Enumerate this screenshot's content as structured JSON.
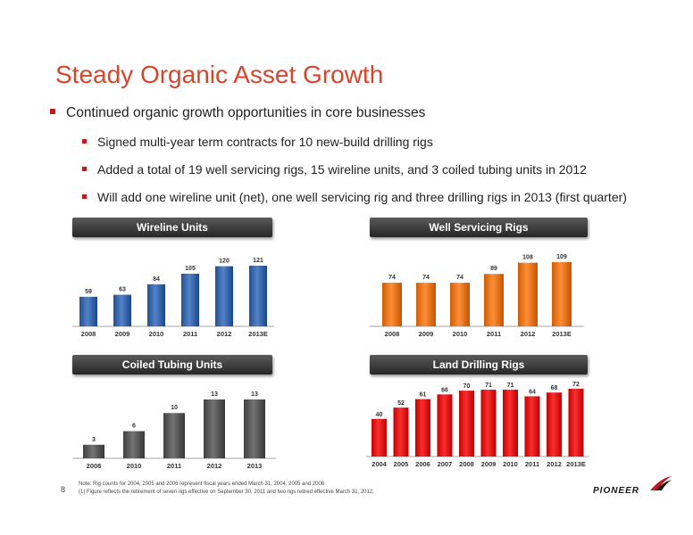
{
  "slide": {
    "title": "Steady Organic Asset Growth",
    "bullets": [
      "Continued organic growth opportunities in core businesses",
      "Signed multi-year term contracts for 10 new-build drilling rigs",
      "Added a total of 19 well servicing rigs, 15 wireline units, and 3 coiled tubing units in 2012",
      "Will add one wireline unit (net), one well servicing rig and three drilling rigs in 2013 (first quarter)"
    ],
    "notes": [
      "Note: Rig counts for 2004, 2005 and 2006 represent fiscal years ended March 31, 2004, 2005 and 2006",
      "(1)  Figure reflects the retirement of seven rigs effective on September 30, 2011 and two rigs retired effective March 31, 2012."
    ],
    "page_number": "8",
    "logo_text": "PIONEER",
    "logo_mark": "pioneer-logo-mark-icon"
  },
  "colors": {
    "title": "#d9452b",
    "bullet": "#c0191e",
    "wireline": "#3a6aad",
    "well_servicing": "#e8761e",
    "coiled_tubing": "#5a5a5a",
    "land_drilling": "#e01616"
  },
  "chart_data": [
    {
      "type": "bar",
      "title": "Wireline Units",
      "categories": [
        "2008",
        "2009",
        "2010",
        "2011",
        "2012",
        "2013E"
      ],
      "values": [
        59,
        63,
        84,
        105,
        120,
        121
      ],
      "xlabel": "",
      "ylabel": "",
      "ylim": [
        0,
        121
      ],
      "grid": false
    },
    {
      "type": "bar",
      "title": "Well Servicing Rigs",
      "categories": [
        "2008",
        "2009",
        "2010",
        "2011",
        "2012",
        "2013E"
      ],
      "values": [
        74,
        74,
        74,
        89,
        108,
        109
      ],
      "xlabel": "",
      "ylabel": "",
      "ylim": [
        0,
        109
      ],
      "grid": false
    },
    {
      "type": "bar",
      "title": "Coiled Tubing Units",
      "categories": [
        "2008",
        "2010",
        "2011",
        "2012",
        "2013"
      ],
      "values": [
        3,
        6,
        10,
        13,
        13
      ],
      "xlabel": "",
      "ylabel": "",
      "ylim": [
        0,
        13
      ],
      "grid": false
    },
    {
      "type": "bar",
      "title": "Land Drilling Rigs",
      "categories": [
        "2004",
        "2005",
        "2006",
        "2007",
        "2008",
        "2009",
        "2010",
        "2011",
        "2012",
        "2013E"
      ],
      "values": [
        40,
        52,
        61,
        66,
        70,
        71,
        71,
        64,
        68,
        72
      ],
      "xlabel": "",
      "ylabel": "",
      "ylim": [
        0,
        72
      ],
      "grid": false
    }
  ]
}
